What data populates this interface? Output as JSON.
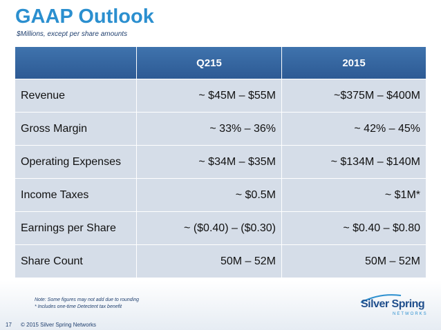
{
  "header": {
    "title": "GAAP Outlook",
    "subtitle": "$Millions, except per share amounts"
  },
  "table": {
    "columns": [
      "Q215",
      "2015"
    ],
    "rows": [
      [
        "Revenue",
        "~ $45M – $55M",
        "~$375M – $400M"
      ],
      [
        "Gross Margin",
        "~ 33% – 36%",
        "~ 42% – 45%"
      ],
      [
        "Operating Expenses",
        "~ $34M – $35M",
        "~ $134M – $140M"
      ],
      [
        "Income Taxes",
        "~ $0.5M",
        "~ $1M*"
      ],
      [
        "Earnings per Share",
        "~ ($0.40) – ($0.30)",
        "~ $0.40 – $0.80"
      ],
      [
        "Share Count",
        "50M – 52M",
        "50M – 52M"
      ]
    ]
  },
  "notes": [
    "Note:  Some figures may not add due to rounding",
    "* Includes one-time Detectent tax benefit"
  ],
  "footer": {
    "page": "17",
    "copyright": "© 2015 Silver Spring Networks"
  },
  "logo": {
    "name": "Silver Spring",
    "tag": "NETWORKS"
  }
}
